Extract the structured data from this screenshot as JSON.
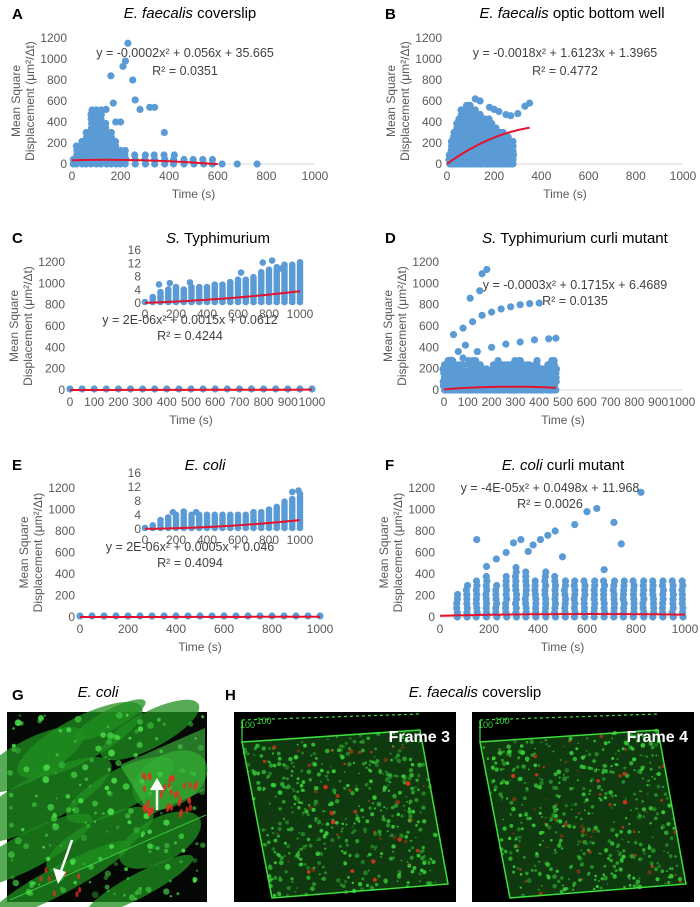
{
  "colors": {
    "point": "#5b9bd5",
    "fit": "#e3122d",
    "axis_text": "#595959",
    "grid": "#d9d9d9",
    "dark": "#000000",
    "green": "#39d23a",
    "red": "#e0331f",
    "white": "#ffffff"
  },
  "chart_data": [
    {
      "id": "A",
      "type": "scatter",
      "panel_label": "A",
      "title_italic": "E. faecalis",
      "title_rest": " coverslip",
      "xlabel": "Time (s)",
      "ylabel_line1": "Mean Square",
      "ylabel_line2": "Displacement (μm²/Δt)",
      "xlim": [
        0,
        1000
      ],
      "ylim": [
        0,
        1200
      ],
      "xticks": [
        "0",
        "200",
        "400",
        "600",
        "800",
        "1000"
      ],
      "yticks": [
        "0",
        "200",
        "400",
        "600",
        "800",
        "1000",
        "1200"
      ],
      "equation": "y = -0.0002x² + 0.056x + 35.665",
      "r2": "R² = 0.0351",
      "fit_coeffs": [
        -0.0002,
        0.056,
        35.665
      ],
      "fit_range": [
        0,
        600
      ],
      "columns": [
        [
          5,
          60
        ],
        [
          20,
          200
        ],
        [
          40,
          230
        ],
        [
          60,
          300
        ],
        [
          80,
          540
        ],
        [
          100,
          540
        ],
        [
          120,
          540
        ],
        [
          140,
          400
        ],
        [
          160,
          340
        ],
        [
          180,
          250
        ],
        [
          200,
          150
        ],
        [
          220,
          130
        ],
        [
          260,
          120
        ],
        [
          300,
          120
        ],
        [
          340,
          110
        ],
        [
          380,
          90
        ],
        [
          420,
          90
        ],
        [
          460,
          80
        ],
        [
          500,
          70
        ],
        [
          540,
          60
        ],
        [
          580,
          60
        ],
        [
          620,
          40
        ],
        [
          680,
          30
        ],
        [
          760,
          20
        ]
      ],
      "points": [
        [
          35,
          100
        ],
        [
          60,
          120
        ],
        [
          80,
          260
        ],
        [
          100,
          200
        ],
        [
          120,
          250
        ],
        [
          140,
          250
        ],
        [
          150,
          150
        ],
        [
          160,
          840
        ],
        [
          170,
          580
        ],
        [
          180,
          400
        ],
        [
          200,
          400
        ],
        [
          210,
          930
        ],
        [
          220,
          980
        ],
        [
          230,
          1150
        ],
        [
          250,
          800
        ],
        [
          260,
          610
        ],
        [
          280,
          520
        ],
        [
          320,
          540
        ],
        [
          340,
          540
        ],
        [
          380,
          300
        ],
        [
          140,
          520
        ]
      ]
    },
    {
      "id": "B",
      "type": "scatter",
      "panel_label": "B",
      "title_italic": "E. faecalis",
      "title_rest": " optic bottom well",
      "xlabel": "Time (s)",
      "ylabel_line1": "Mean Square",
      "ylabel_line2": "Displacement (μm²/Δt)",
      "xlim": [
        0,
        1000
      ],
      "ylim": [
        0,
        1200
      ],
      "xticks": [
        "0",
        "200",
        "400",
        "600",
        "800",
        "1000"
      ],
      "yticks": [
        "0",
        "200",
        "400",
        "600",
        "800",
        "1000",
        "1200"
      ],
      "equation": "y = -0.0018x² + 1.6123x + 1.3965",
      "r2": "R² = 0.4772",
      "fit_coeffs": [
        -0.0018,
        1.6123,
        1.3965
      ],
      "fit_range": [
        0,
        350
      ],
      "columns": [
        [
          10,
          120
        ],
        [
          20,
          240
        ],
        [
          30,
          320
        ],
        [
          40,
          400
        ],
        [
          50,
          470
        ],
        [
          60,
          520
        ],
        [
          70,
          550
        ],
        [
          80,
          560
        ],
        [
          90,
          580
        ],
        [
          100,
          560
        ],
        [
          110,
          540
        ],
        [
          120,
          520
        ],
        [
          130,
          500
        ],
        [
          140,
          480
        ],
        [
          150,
          460
        ],
        [
          160,
          440
        ],
        [
          170,
          420
        ],
        [
          180,
          430
        ],
        [
          190,
          400
        ],
        [
          200,
          380
        ],
        [
          210,
          360
        ],
        [
          220,
          340
        ],
        [
          230,
          320
        ],
        [
          240,
          300
        ],
        [
          250,
          280
        ],
        [
          260,
          260
        ],
        [
          270,
          240
        ],
        [
          280,
          220
        ]
      ],
      "points": [
        [
          120,
          620
        ],
        [
          140,
          600
        ],
        [
          180,
          540
        ],
        [
          200,
          520
        ],
        [
          220,
          500
        ],
        [
          250,
          470
        ],
        [
          270,
          460
        ],
        [
          300,
          480
        ],
        [
          330,
          550
        ],
        [
          350,
          580
        ],
        [
          240,
          140
        ],
        [
          260,
          120
        ],
        [
          280,
          120
        ]
      ]
    },
    {
      "id": "C",
      "type": "scatter",
      "panel_label": "C",
      "title_italic": "S.",
      "title_rest": " Typhimurium",
      "xlabel": "Time (s)",
      "ylabel_line1": "Mean Square",
      "ylabel_line2": "Displacement (μm²/Δt)",
      "xlim": [
        0,
        1000
      ],
      "ylim": [
        0,
        1200
      ],
      "xticks": [
        "0",
        "100",
        "200",
        "300",
        "400",
        "500",
        "600",
        "700",
        "800",
        "900",
        "1000"
      ],
      "yticks": [
        "0",
        "200",
        "400",
        "600",
        "800",
        "1000",
        "1200"
      ],
      "equation": "y = 2E-06x² + 0.0015x + 0.0612",
      "r2": "R² = 0.4244",
      "fit_coeffs": [
        2e-06,
        0.0015,
        0.0612
      ],
      "fit_range": [
        0,
        1000
      ],
      "inset": {
        "xlim": [
          0,
          1000
        ],
        "ylim": [
          0,
          16
        ],
        "xticks": [
          "0",
          "200",
          "400",
          "600",
          "800",
          "1000"
        ],
        "yticks": [
          "0",
          "4",
          "8",
          "12",
          "16"
        ],
        "fit_coeffs": [
          2e-06,
          0.0015,
          0.0612
        ],
        "upper": [
          [
            0,
            0.6
          ],
          [
            50,
            2.5
          ],
          [
            100,
            4
          ],
          [
            150,
            4.5
          ],
          [
            200,
            4.8
          ],
          [
            250,
            4.6
          ],
          [
            300,
            4.8
          ],
          [
            350,
            5
          ],
          [
            400,
            5.4
          ],
          [
            450,
            5.8
          ],
          [
            500,
            6.2
          ],
          [
            550,
            6.8
          ],
          [
            600,
            7.2
          ],
          [
            650,
            7.6
          ],
          [
            700,
            8.4
          ],
          [
            750,
            9.4
          ],
          [
            800,
            10.2
          ],
          [
            850,
            11
          ],
          [
            900,
            11.6
          ],
          [
            950,
            12.2
          ],
          [
            1000,
            12.8
          ]
        ],
        "outliers": [
          [
            90,
            5.6
          ],
          [
            160,
            6
          ],
          [
            290,
            6.2
          ],
          [
            620,
            9.2
          ],
          [
            760,
            12.2
          ],
          [
            820,
            12.8
          ],
          [
            880,
            10.4
          ]
        ]
      }
    },
    {
      "id": "D",
      "type": "scatter",
      "panel_label": "D",
      "title_italic": "S.",
      "title_rest": " Typhimurium  curli mutant",
      "xlabel": "Time (s)",
      "ylabel_line1": "Mean Square",
      "ylabel_line2": "Displacement (μm²/Δt)",
      "xlim": [
        0,
        1000
      ],
      "ylim": [
        0,
        1200
      ],
      "xticks": [
        "0",
        "100",
        "200",
        "300",
        "400",
        "500",
        "600",
        "700",
        "800",
        "900",
        "1000"
      ],
      "yticks": [
        "0",
        "200",
        "400",
        "600",
        "800",
        "1000",
        "1200"
      ],
      "equation": "y = -0.0003x² + 0.1715x + 6.4689",
      "r2": "R² = 0.0135",
      "fit_coeffs": [
        -0.0003,
        0.1715,
        6.4689
      ],
      "fit_range": [
        0,
        470
      ],
      "band_max": 320,
      "band_range": [
        0,
        470
      ],
      "curves": [
        [
          [
            40,
            520
          ],
          [
            80,
            580
          ],
          [
            120,
            640
          ],
          [
            160,
            700
          ],
          [
            200,
            730
          ],
          [
            240,
            760
          ],
          [
            280,
            780
          ],
          [
            320,
            800
          ],
          [
            360,
            810
          ],
          [
            400,
            815
          ]
        ],
        [
          [
            20,
            200
          ],
          [
            80,
            300
          ],
          [
            140,
            360
          ],
          [
            200,
            400
          ],
          [
            260,
            430
          ],
          [
            320,
            450
          ],
          [
            380,
            470
          ],
          [
            440,
            480
          ],
          [
            470,
            485
          ]
        ]
      ],
      "points": [
        [
          110,
          860
        ],
        [
          150,
          930
        ],
        [
          160,
          1090
        ],
        [
          180,
          1130
        ],
        [
          60,
          360
        ],
        [
          90,
          420
        ],
        [
          30,
          280
        ]
      ]
    },
    {
      "id": "E",
      "type": "scatter",
      "panel_label": "E",
      "title_italic": "E. coli",
      "title_rest": "",
      "xlabel": "Time (s)",
      "ylabel_line1": "Mean Square",
      "ylabel_line2": "Displacement (μm²/Δt)",
      "xlim": [
        0,
        1000
      ],
      "ylim": [
        0,
        1200
      ],
      "xticks": [
        "0",
        "200",
        "400",
        "600",
        "800",
        "1000"
      ],
      "yticks": [
        "0",
        "200",
        "400",
        "600",
        "800",
        "1000",
        "1200"
      ],
      "equation": "y = 2E-06x² + 0.0005x + 0.046",
      "r2": "R² = 0.4094",
      "fit_coeffs": [
        2e-06,
        0.0005,
        0.046
      ],
      "fit_range": [
        0,
        1000
      ],
      "inset": {
        "xlim": [
          0,
          1000
        ],
        "ylim": [
          0,
          16
        ],
        "xticks": [
          "0",
          "200",
          "400",
          "600",
          "800",
          "1000"
        ],
        "yticks": [
          "0",
          "4",
          "8",
          "12",
          "16"
        ],
        "fit_coeffs": [
          2e-06,
          0.0005,
          0.046
        ],
        "upper": [
          [
            0,
            0.4
          ],
          [
            50,
            1.2
          ],
          [
            100,
            2.6
          ],
          [
            150,
            3.4
          ],
          [
            200,
            4.2
          ],
          [
            250,
            4.2
          ],
          [
            300,
            4.2
          ],
          [
            350,
            4.2
          ],
          [
            400,
            4.3
          ],
          [
            450,
            4.3
          ],
          [
            500,
            4.4
          ],
          [
            550,
            4.4
          ],
          [
            600,
            4.5
          ],
          [
            650,
            4.6
          ],
          [
            700,
            4.8
          ],
          [
            750,
            5
          ],
          [
            800,
            5.6
          ],
          [
            850,
            6.6
          ],
          [
            900,
            7.8
          ],
          [
            950,
            9.2
          ],
          [
            1000,
            10.4
          ]
        ],
        "outliers": [
          [
            180,
            4.8
          ],
          [
            250,
            5
          ],
          [
            330,
            4.8
          ],
          [
            950,
            10.6
          ],
          [
            990,
            11
          ]
        ]
      }
    },
    {
      "id": "F",
      "type": "scatter",
      "panel_label": "F",
      "title_italic": "E. coli",
      "title_rest": " curli mutant",
      "xlabel": "Time (s)",
      "ylabel_line1": "Mean Square",
      "ylabel_line2": "Displacement (μm²/Δt)",
      "xlim": [
        0,
        1000
      ],
      "ylim": [
        0,
        1200
      ],
      "xticks": [
        "0",
        "200",
        "400",
        "600",
        "800",
        "1000"
      ],
      "yticks": [
        "0",
        "200",
        "400",
        "600",
        "800",
        "1000",
        "1200"
      ],
      "equation": "y = -4E-05x² + 0.0498x + 11.968",
      "r2": "R² = 0.0026",
      "fit_coeffs": [
        -4e-05,
        0.0498,
        11.968
      ],
      "fit_range": [
        0,
        1000
      ],
      "columns": [
        [
          70,
          250
        ],
        [
          110,
          300
        ],
        [
          150,
          340
        ],
        [
          190,
          380
        ],
        [
          230,
          300
        ],
        [
          270,
          400
        ],
        [
          310,
          480
        ],
        [
          350,
          440
        ],
        [
          390,
          360
        ],
        [
          430,
          420
        ],
        [
          470,
          380
        ],
        [
          510,
          360
        ],
        [
          550,
          340
        ],
        [
          590,
          360
        ],
        [
          630,
          360
        ],
        [
          670,
          360
        ],
        [
          710,
          360
        ],
        [
          750,
          360
        ],
        [
          790,
          360
        ],
        [
          830,
          340
        ],
        [
          870,
          360
        ],
        [
          910,
          360
        ],
        [
          950,
          360
        ],
        [
          990,
          360
        ]
      ],
      "points": [
        [
          150,
          720
        ],
        [
          190,
          470
        ],
        [
          230,
          540
        ],
        [
          270,
          600
        ],
        [
          300,
          690
        ],
        [
          330,
          720
        ],
        [
          360,
          610
        ],
        [
          380,
          670
        ],
        [
          410,
          720
        ],
        [
          440,
          760
        ],
        [
          470,
          800
        ],
        [
          500,
          560
        ],
        [
          550,
          860
        ],
        [
          600,
          980
        ],
        [
          640,
          1010
        ],
        [
          670,
          440
        ],
        [
          710,
          880
        ],
        [
          740,
          680
        ],
        [
          820,
          1160
        ]
      ]
    }
  ],
  "images": {
    "G": {
      "label": "G",
      "title": "E. coli"
    },
    "H": {
      "label": "H",
      "title_italic": "E. faecalis",
      "title_rest": " coverslip",
      "frame_a": "Frame 3",
      "frame_b": "Frame 4",
      "scale_label": "100"
    }
  }
}
